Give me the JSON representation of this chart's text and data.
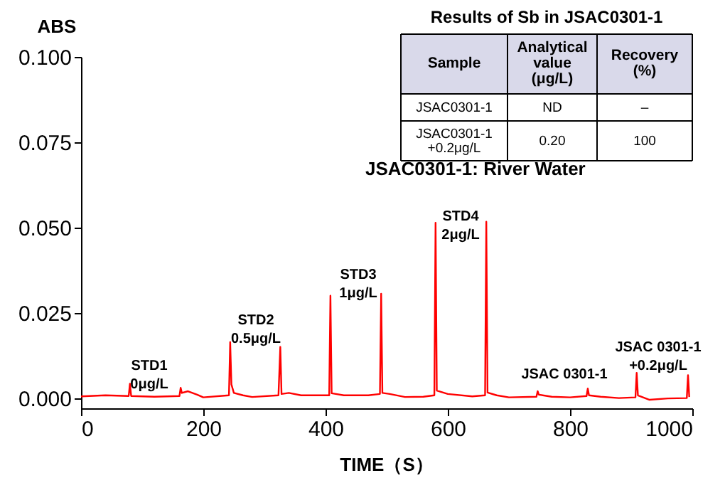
{
  "chart_data": {
    "type": "line",
    "xlabel": "TIME（S）",
    "ylabel": "ABS",
    "x": [
      0,
      40,
      78,
      80,
      82,
      120,
      161,
      163,
      165,
      175,
      190,
      200,
      242,
      244,
      246,
      250,
      265,
      280,
      323,
      326,
      328,
      340,
      360,
      406,
      408,
      410,
      430,
      470,
      489,
      491,
      493,
      505,
      530,
      560,
      578,
      580,
      582,
      600,
      640,
      661,
      663,
      665,
      680,
      700,
      745,
      747,
      749,
      770,
      800,
      827,
      829,
      831,
      850,
      880,
      907,
      909,
      911,
      930,
      960,
      991,
      993,
      995
    ],
    "series": [
      {
        "color": "#ff0000",
        "values": [
          0.0005,
          0.0008,
          0.0006,
          0.0042,
          0.0006,
          0.0004,
          0.0006,
          0.003,
          0.0015,
          0.002,
          0.001,
          0.0002,
          0.0008,
          0.0164,
          0.004,
          0.0015,
          0.0008,
          0.0003,
          0.0008,
          0.015,
          0.0012,
          0.0015,
          0.0008,
          0.0008,
          0.03,
          0.0014,
          0.0008,
          0.0008,
          0.0012,
          0.0306,
          0.0015,
          0.0012,
          0.0003,
          0.0004,
          0.0008,
          0.0514,
          0.0022,
          0.0012,
          0.0005,
          0.0008,
          0.0517,
          0.0016,
          0.0008,
          0.0002,
          0.0004,
          0.002,
          0.001,
          0.0004,
          0.0002,
          0.0006,
          0.0028,
          0.0008,
          0.0004,
          0.0,
          0.0002,
          0.0074,
          0.0008,
          -0.0005,
          -0.0001,
          0.0,
          0.0067,
          0.0003
        ]
      }
    ],
    "xlim": [
      0,
      1000
    ],
    "xticks": [
      0,
      200,
      400,
      600,
      800,
      1000
    ],
    "ylim": [
      -0.003,
      0.1
    ],
    "yticks": [
      {
        "value": 0,
        "label": "0.000"
      },
      {
        "value": 0.025,
        "label": "0.025"
      },
      {
        "value": 0.05,
        "label": "0.050"
      },
      {
        "value": 0.075,
        "label": "0.075"
      },
      {
        "value": 0.1,
        "label": "0.100"
      }
    ],
    "grid": false,
    "marker": "none",
    "line_style": "solid",
    "annotations": [
      "Results of Sb in JSAC0301-1",
      "Sample",
      "Analytical\nvalue\n(μg/L)",
      "Recovery\n(%)",
      "JSAC0301-1",
      "ND",
      "–",
      "JSAC0301-1\n+0.2μg/L",
      "0.20",
      "100",
      "JSAC0301-1: River Water",
      "STD1\n0μg/L",
      "STD2\n0.5μg/L",
      "STD3\n1μg/L",
      "STD4\n2μg/L",
      "JSAC 0301-1",
      "JSAC 0301-1\n+0.2μg/L"
    ]
  }
}
